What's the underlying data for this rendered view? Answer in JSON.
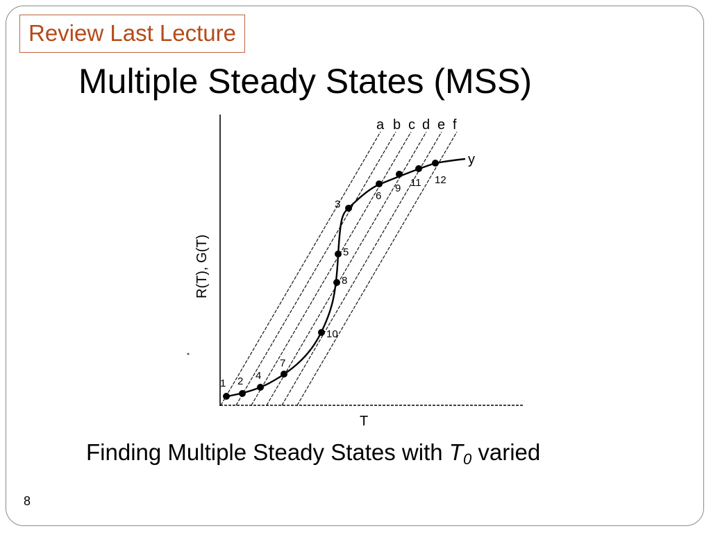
{
  "header": {
    "tag_label": "Review Last Lecture",
    "title": "Multiple Steady States (MSS)"
  },
  "figure": {
    "y_axis_label": "R(T), G(T)",
    "x_axis_label": "T",
    "curve_label": "y",
    "line_labels": [
      "a",
      "b",
      "c",
      "d",
      "e",
      "f"
    ],
    "point_labels": [
      "1",
      "2",
      "3",
      "4",
      "5",
      "6",
      "7",
      "8",
      "9",
      "10",
      "11",
      "12"
    ]
  },
  "caption": {
    "prefix": "Finding Multiple Steady States with ",
    "variable": "T",
    "subscript": "0",
    "suffix": " varied"
  },
  "footer": {
    "slide_number": "8"
  }
}
